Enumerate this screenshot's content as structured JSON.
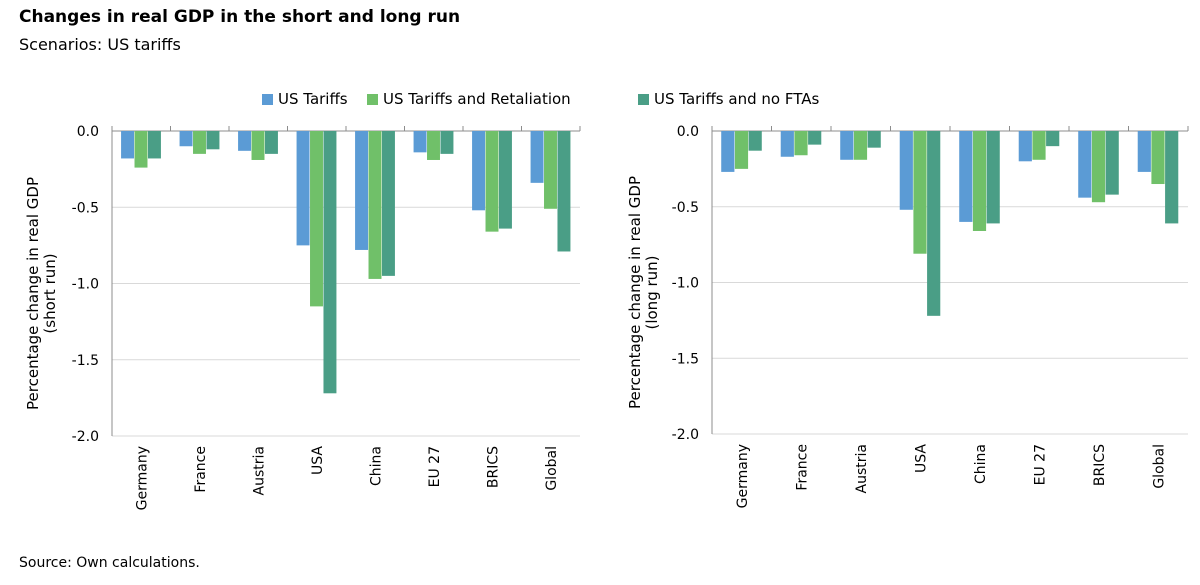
{
  "title": "Changes in real GDP in the short and long run",
  "subtitle": "Scenarios: US tariffs",
  "source": "Source: Own calculations.",
  "legend": [
    {
      "label": "US Tariffs",
      "color": "#5b9bd5"
    },
    {
      "label": "US Tariffs and Retaliation",
      "color": "#70c069"
    },
    {
      "label": "US Tariffs and no FTAs",
      "color": "#4a9e86"
    }
  ],
  "chart_data": [
    {
      "type": "bar",
      "ylabel": "Percentage change in real GDP\n(short run)",
      "ylim": [
        -2.0,
        0.0
      ],
      "yticks": [
        "0.0",
        "-0.5",
        "-1.0",
        "-1.5",
        "-2.0"
      ],
      "grid": true,
      "categories": [
        "Germany",
        "France",
        "Austria",
        "USA",
        "China",
        "EU 27",
        "BRICS",
        "Global"
      ],
      "series": [
        {
          "name": "US Tariffs",
          "values": [
            -0.18,
            -0.1,
            -0.13,
            -0.75,
            -0.78,
            -0.14,
            -0.52,
            -0.34
          ]
        },
        {
          "name": "US Tariffs and Retaliation",
          "values": [
            -0.24,
            -0.15,
            -0.19,
            -1.15,
            -0.97,
            -0.19,
            -0.66,
            -0.51
          ]
        },
        {
          "name": "US Tariffs and no FTAs",
          "values": [
            -0.18,
            -0.12,
            -0.15,
            -1.72,
            -0.95,
            -0.15,
            -0.64,
            -0.79
          ]
        }
      ]
    },
    {
      "type": "bar",
      "ylabel": "Percentage change in real GDP\n(long run)",
      "ylim": [
        -2.0,
        0.0
      ],
      "yticks": [
        "0.0",
        "-0.5",
        "-1.0",
        "-1.5",
        "-2.0"
      ],
      "grid": true,
      "categories": [
        "Germany",
        "France",
        "Austria",
        "USA",
        "China",
        "EU 27",
        "BRICS",
        "Global"
      ],
      "series": [
        {
          "name": "US Tariffs",
          "values": [
            -0.27,
            -0.17,
            -0.19,
            -0.52,
            -0.6,
            -0.2,
            -0.44,
            -0.27
          ]
        },
        {
          "name": "US Tariffs and Retaliation",
          "values": [
            -0.25,
            -0.16,
            -0.19,
            -0.81,
            -0.66,
            -0.19,
            -0.47,
            -0.35
          ]
        },
        {
          "name": "US Tariffs and no FTAs",
          "values": [
            -0.13,
            -0.09,
            -0.11,
            -1.22,
            -0.61,
            -0.1,
            -0.42,
            -0.61
          ]
        }
      ]
    }
  ]
}
